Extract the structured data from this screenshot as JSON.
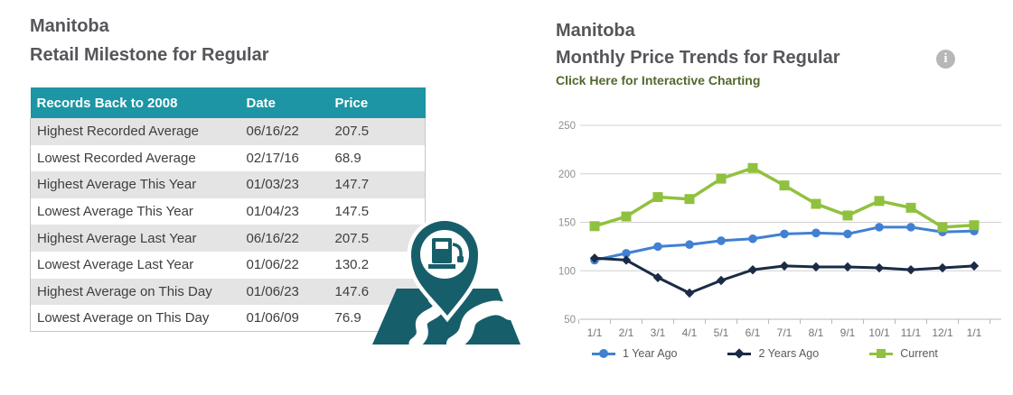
{
  "milestones": {
    "region": "Manitoba",
    "title": "Retail Milestone for Regular",
    "table": {
      "headers": [
        "Records Back to 2008",
        "Date",
        "Price"
      ],
      "rows": [
        {
          "label": "Highest Recorded Average",
          "date": "06/16/22",
          "price": "207.5"
        },
        {
          "label": "Lowest Recorded Average",
          "date": "02/17/16",
          "price": "68.9"
        },
        {
          "label": "Highest Average This Year",
          "date": "01/03/23",
          "price": "147.7"
        },
        {
          "label": "Lowest Average This Year",
          "date": "01/04/23",
          "price": "147.5"
        },
        {
          "label": "Highest Average Last Year",
          "date": "06/16/22",
          "price": "207.5"
        },
        {
          "label": "Lowest Average Last Year",
          "date": "01/06/22",
          "price": "130.2"
        },
        {
          "label": "Highest Average on This Day",
          "date": "01/06/23",
          "price": "147.6"
        },
        {
          "label": "Lowest Average on This Day",
          "date": "01/06/09",
          "price": "76.9"
        }
      ]
    },
    "icon": "gas-pump-map-pin-icon"
  },
  "trends": {
    "region": "Manitoba",
    "title": "Monthly Price Trends for Regular",
    "link_label": "Click Here for Interactive Charting",
    "info_icon": "info-icon"
  },
  "chart_data": {
    "type": "line",
    "x": [
      "1/1",
      "2/1",
      "3/1",
      "4/1",
      "5/1",
      "6/1",
      "7/1",
      "8/1",
      "9/1",
      "10/1",
      "11/1",
      "12/1",
      "1/1"
    ],
    "series": [
      {
        "name": "1 Year Ago",
        "marker": "circle",
        "color": "#4180d2",
        "values": [
          111,
          118,
          125,
          127,
          131,
          133,
          138,
          139,
          138,
          145,
          145,
          140,
          141
        ]
      },
      {
        "name": "2 Years Ago",
        "marker": "diamond",
        "color": "#1a2b45",
        "values": [
          113,
          111,
          93,
          77,
          90,
          101,
          105,
          104,
          104,
          103,
          101,
          103,
          105
        ]
      },
      {
        "name": "Current",
        "marker": "square",
        "color": "#90c13e",
        "values": [
          146,
          156,
          176,
          174,
          195,
          206,
          188,
          169,
          157,
          172,
          165,
          145,
          147
        ]
      }
    ],
    "ylim": [
      50,
      250
    ],
    "yticks": [
      50,
      100,
      150,
      200,
      250
    ],
    "grid": true,
    "legend_position": "bottom"
  },
  "colors": {
    "table_header_bg": "#1d95a4",
    "row_stripe": "#e4e4e4",
    "icon_teal": "#175e6b",
    "title_text": "#55565a",
    "link_green": "#52682d",
    "gridline": "#d0d0d0",
    "axis": "#b8b8b8"
  }
}
